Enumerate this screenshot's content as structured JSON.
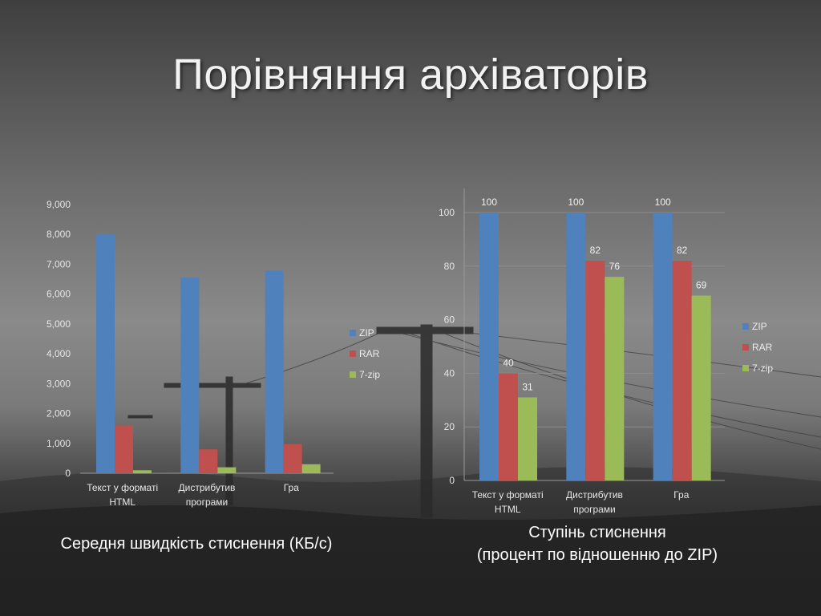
{
  "slide": {
    "title": "Порівняння архіваторів"
  },
  "captions": {
    "left": "Середня швидкість стиснення (КБ/с)",
    "right_line1": "Ступінь стиснення",
    "right_line2": "(процент по відношенню до ZIP)"
  },
  "colors": {
    "zip": "#4f81bd",
    "rar": "#c0504d",
    "sevenzip": "#9bbb59"
  },
  "chart_data": [
    {
      "type": "bar",
      "categories": [
        [
          "Текст у форматі",
          "HTML"
        ],
        [
          "Дистрибутив",
          "програми"
        ],
        [
          "Гра"
        ]
      ],
      "series": [
        {
          "name": "ZIP",
          "values": [
            8000,
            6550,
            6800
          ]
        },
        {
          "name": "RAR",
          "values": [
            1600,
            800,
            980
          ]
        },
        {
          "name": "7-zip",
          "values": [
            100,
            200,
            300
          ]
        }
      ],
      "yticks": [
        "0",
        "1,000",
        "2,000",
        "3,000",
        "4,000",
        "5,000",
        "6,000",
        "7,000",
        "8,000",
        "9,000"
      ],
      "ylim": [
        0,
        9000
      ],
      "grid": false,
      "data_labels": false,
      "legend": "right"
    },
    {
      "type": "bar",
      "categories": [
        [
          "Текст у форматі",
          "HTML"
        ],
        [
          "Дистрибутив",
          "програми"
        ],
        [
          "Гра"
        ]
      ],
      "series": [
        {
          "name": "ZIP",
          "values": [
            100,
            100,
            100
          ]
        },
        {
          "name": "RAR",
          "values": [
            40,
            82,
            82
          ]
        },
        {
          "name": "7-zip",
          "values": [
            31,
            76,
            69
          ]
        }
      ],
      "yticks": [
        "0",
        "20",
        "40",
        "60",
        "80",
        "100"
      ],
      "ylim": [
        0,
        100
      ],
      "grid": true,
      "data_labels": true,
      "legend": "right"
    }
  ]
}
